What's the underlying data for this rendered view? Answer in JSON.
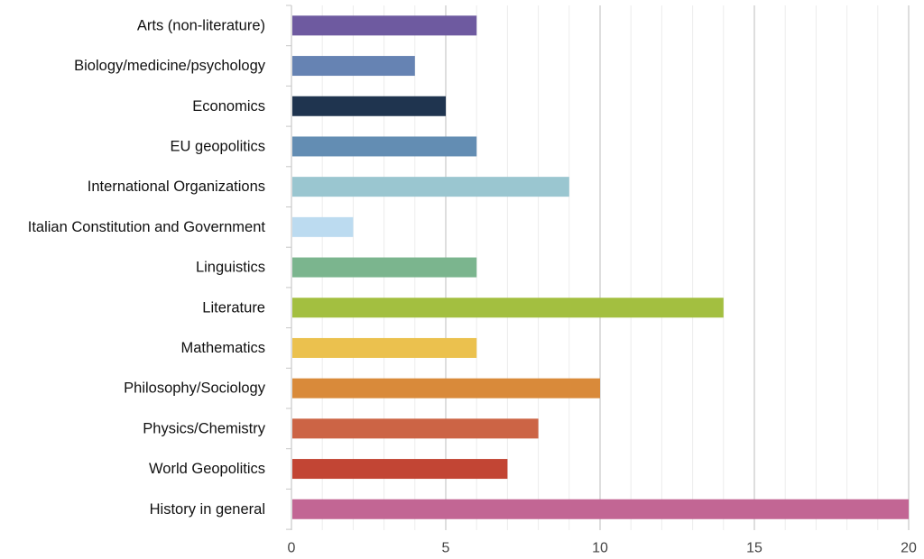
{
  "chart_data": {
    "type": "bar",
    "orientation": "horizontal",
    "title": "",
    "xlabel": "",
    "ylabel": "",
    "xlim": [
      0,
      20
    ],
    "xticks": [
      0,
      5,
      10,
      15,
      20
    ],
    "grid": true,
    "legend": "none",
    "categories": [
      "Arts (non-literature)",
      "Biology/medicine/psychology",
      "Economics",
      "EU geopolitics",
      "International Organizations",
      "Italian Constitution and Government",
      "Linguistics",
      "Literature",
      "Mathematics",
      "Philosophy/Sociology",
      "Physics/Chemistry",
      "World Geopolitics",
      "History in general"
    ],
    "values": [
      6,
      4,
      5,
      6,
      9,
      2,
      6,
      14,
      6,
      10,
      8,
      7,
      20
    ],
    "colors": [
      "#6e5aa0",
      "#6683b3",
      "#1f344f",
      "#638db3",
      "#9ac6d0",
      "#bcdbf0",
      "#7bb58e",
      "#a3bf40",
      "#ebc14e",
      "#d98a3a",
      "#cc6445",
      "#c24534",
      "#c26694"
    ]
  }
}
